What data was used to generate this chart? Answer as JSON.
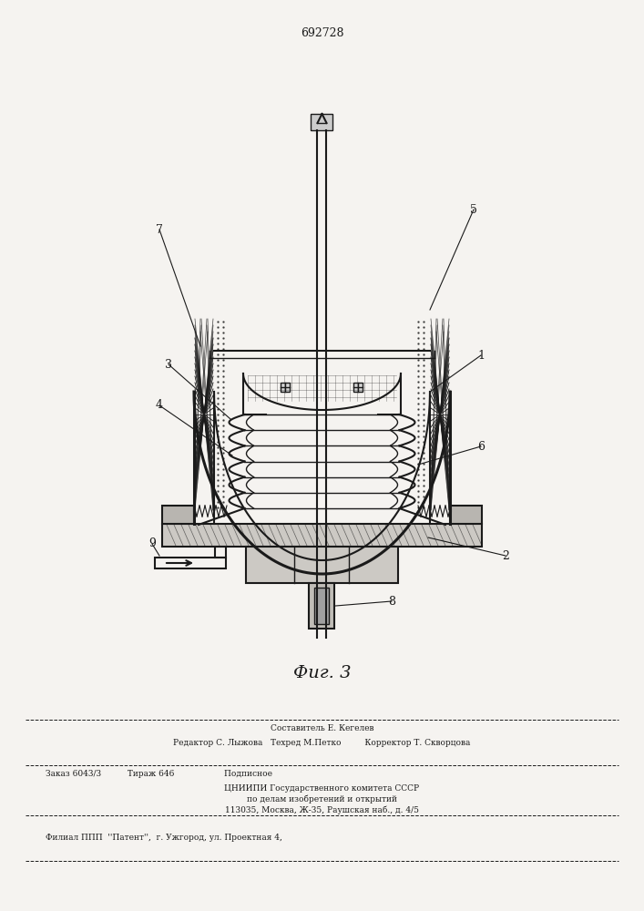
{
  "patent_number": "692728",
  "fig_label": "Фиг. 3",
  "bg_color": "#f5f3f0",
  "line_color": "#1a1a1a",
  "footer_lines": [
    "Составитель Е. Кегелев",
    "Редактор С. Лыжова   Техред М.Петко         Корректор Т. Скворцова",
    "Заказ 6043/3          Тираж 646                   Подписное",
    "ЦНИИПИ Государственного комитета СССР",
    "по делам изобретений и открытий",
    "113035, Москва, Ж-35, Раушская наб., д. 4/5",
    "Филиал ППП  ''Патент'',  г. Ужгород, ул. Проектная 4,"
  ]
}
